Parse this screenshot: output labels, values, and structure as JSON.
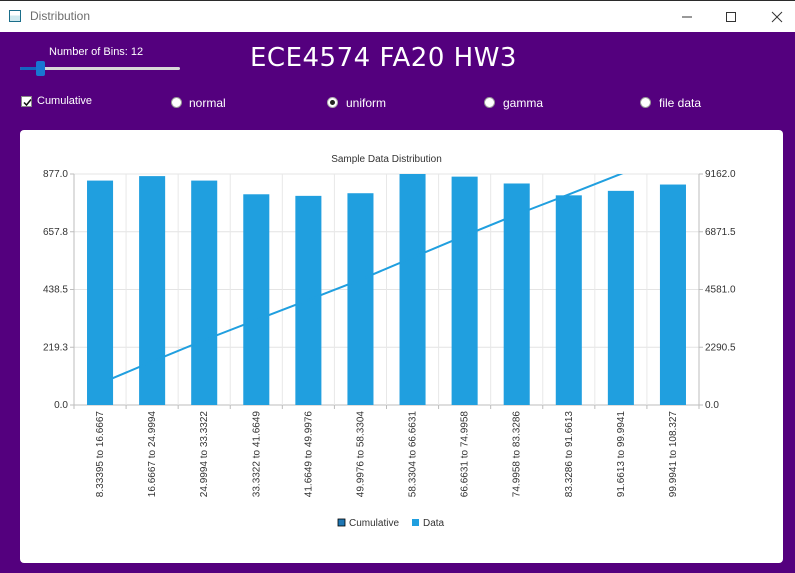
{
  "window": {
    "title": "Distribution",
    "icons": [
      "app-icon",
      "minimize-icon",
      "maximize-icon",
      "close-icon"
    ]
  },
  "controls": {
    "bins_label": "Number of Bins: 12",
    "bins_value": 12,
    "slider_fraction": 0.1,
    "app_title": "ECE4574 FA20 HW3",
    "cumulative_label": "Cumulative",
    "cumulative_checked": true,
    "radios": [
      {
        "label": "normal",
        "checked": false
      },
      {
        "label": "uniform",
        "checked": true
      },
      {
        "label": "gamma",
        "checked": false
      },
      {
        "label": "file data",
        "checked": false
      }
    ]
  },
  "colors": {
    "background": "#54007e",
    "bar": "#209fdf",
    "line": "#209fdf",
    "cumulative_legend": "#1f77b4"
  },
  "chart_data": {
    "type": "bar",
    "title": "Sample Data Distribution",
    "categories": [
      "8.33395 to 16.6667",
      "16.6667 to 24.9994",
      "24.9994 to 33.3322",
      "33.3322 to 41.6649",
      "41.6649 to 49.9976",
      "49.9976 to 58.3304",
      "58.3304 to 66.6631",
      "66.6631 to 74.9958",
      "74.9958 to 83.3286",
      "83.3286 to 91.6613",
      "91.6613 to 99.9941",
      "99.9941 to 108.327"
    ],
    "series": [
      {
        "name": "Data",
        "type": "bar",
        "axis": "left",
        "values": [
          852,
          869,
          852,
          800,
          794,
          804,
          877,
          867,
          841,
          796,
          813,
          837
        ]
      },
      {
        "name": "Cumulative",
        "type": "line",
        "axis": "right",
        "values": [
          852,
          1721,
          2573,
          3373,
          4167,
          4971,
          5848,
          6715,
          7556,
          8352,
          9165,
          10002
        ]
      }
    ],
    "left_axis": {
      "min": 0,
      "max": 877,
      "ticks": [
        "0.0",
        "219.3",
        "438.5",
        "657.8",
        "877.0"
      ]
    },
    "right_axis": {
      "min": 0,
      "max": 9162,
      "ticks": [
        "0.0",
        "2290.5",
        "4581.0",
        "6871.5",
        "9162.0"
      ]
    },
    "legend": [
      {
        "label": "Cumulative",
        "color": "#1f77b4"
      },
      {
        "label": "Data",
        "color": "#209fdf"
      }
    ],
    "legend_position": "bottom",
    "grid": true
  }
}
